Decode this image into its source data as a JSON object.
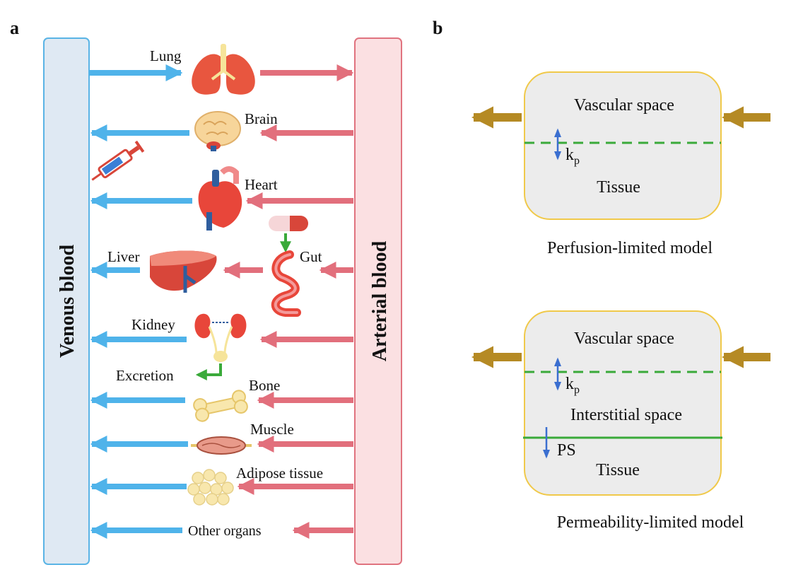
{
  "panel_a": {
    "letter": "a",
    "venous_label": "Venous blood",
    "arterial_label": "Arterial blood",
    "organs": {
      "lung": "Lung",
      "brain": "Brain",
      "heart": "Heart",
      "gut": "Gut",
      "liver": "Liver",
      "kidney": "Kidney",
      "excretion": "Excretion",
      "bone": "Bone",
      "muscle": "Muscle",
      "adipose": "Adipose tissue",
      "other": "Other organs"
    }
  },
  "panel_b": {
    "letter": "b",
    "perfusion": {
      "vascular": "Vascular space",
      "kp_main": "k",
      "kp_sub": "p",
      "tissue": "Tissue",
      "caption": "Perfusion-limited model"
    },
    "permeability": {
      "vascular": "Vascular space",
      "kp_main": "k",
      "kp_sub": "p",
      "interstitial": "Interstitial space",
      "ps": "PS",
      "tissue": "Tissue",
      "caption": "Permeability-limited model"
    }
  },
  "colors": {
    "venous_fill": "#dfe9f3",
    "venous_stroke": "#5ab4e5",
    "arterial_fill": "#fbe0e2",
    "arterial_stroke": "#e0737f",
    "venous_arrow": "#4fb3ea",
    "arterial_arrow": "#e26f7c",
    "green_arrow": "#3aaa3a",
    "flow_arrow": "#b58a24",
    "box_fill": "#ececec",
    "box_stroke": "#f0c94a",
    "dashed_line": "#3aaa3a",
    "exchange_arrow": "#3b6fd0"
  }
}
